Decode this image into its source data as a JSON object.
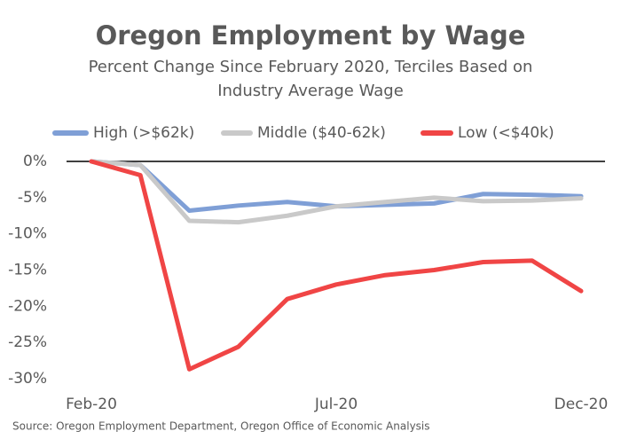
{
  "chart_data": {
    "type": "line",
    "title": "Oregon Employment by Wage",
    "subtitle": [
      "Percent Change Since February 2020, Terciles Based on",
      "Industry Average Wage"
    ],
    "source": "Source: Oregon Employment Department, Oregon Office of Economic Analysis",
    "categories": [
      "Feb-20",
      null,
      null,
      null,
      null,
      "Jul-20",
      null,
      null,
      null,
      null,
      "Dec-20"
    ],
    "series": [
      {
        "name": "High (>$62k)",
        "color": "#7f9fd6",
        "values": [
          0,
          -0.5,
          -6.8,
          -6.1,
          -5.6,
          -6.2,
          -6.0,
          -5.8,
          -4.5,
          -4.6,
          -4.8
        ]
      },
      {
        "name": "Middle ($40-62k)",
        "color": "#c9c9c9",
        "values": [
          0,
          -0.5,
          -8.2,
          -8.4,
          -7.5,
          -6.2,
          -5.6,
          -5.0,
          -5.5,
          -5.4,
          -5.1
        ]
      },
      {
        "name": "Low (<$40k)",
        "color": "#f04545",
        "values": [
          0,
          -1.9,
          -28.7,
          -25.6,
          -19.0,
          -17.0,
          -15.7,
          -15.0,
          -13.9,
          -13.7,
          -17.9
        ]
      }
    ],
    "ylim": [
      -30,
      0
    ],
    "yticks": [
      {
        "value": 0,
        "label": "0%"
      },
      {
        "value": -5,
        "label": "-5%"
      },
      {
        "value": -10,
        "label": "-10%"
      },
      {
        "value": -15,
        "label": "-15%"
      },
      {
        "value": -20,
        "label": "-20%"
      },
      {
        "value": -25,
        "label": "-25%"
      },
      {
        "value": -30,
        "label": "-30%"
      }
    ],
    "grid": false,
    "legend": "top"
  }
}
